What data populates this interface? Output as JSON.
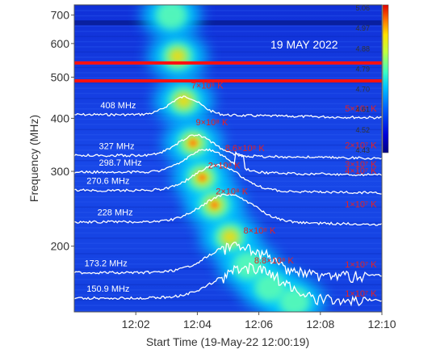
{
  "chart_data": {
    "type": "heatmap",
    "title": "19 MAY 2022",
    "xlabel": "Start Time (19-May-22 12:00:19)",
    "ylabel": "Frequency (MHz)",
    "x_axis": {
      "unit": "minutes after 12:00:19",
      "range": [
        0,
        10
      ],
      "ticks": [
        {
          "value": 2,
          "label": "12:02"
        },
        {
          "value": 4,
          "label": "12:04"
        },
        {
          "value": 6,
          "label": "12:06"
        },
        {
          "value": 8,
          "label": "12:08"
        },
        {
          "value": 10,
          "label": "12:10"
        }
      ]
    },
    "y_axis": {
      "scale": "log",
      "unit": "MHz",
      "range": [
        140,
        740
      ],
      "ticks": [
        200,
        300,
        400,
        500,
        600,
        700
      ]
    },
    "colorbar": {
      "range": [
        4.43,
        5.06
      ],
      "ticks": [
        "5.06",
        "4.97",
        "4.88",
        "4.79",
        "4.70",
        "4.61",
        "4.52",
        "4.43"
      ]
    },
    "burst": {
      "description_values": "drifting intensity ridge, frequency (MHz) vs time (min)",
      "ridge": [
        {
          "t": 3.0,
          "f": 700
        },
        {
          "t": 3.2,
          "f": 560
        },
        {
          "t": 3.4,
          "f": 440
        },
        {
          "t": 3.7,
          "f": 350
        },
        {
          "t": 4.0,
          "f": 290
        },
        {
          "t": 4.4,
          "f": 250
        },
        {
          "t": 4.9,
          "f": 210
        },
        {
          "t": 5.5,
          "f": 180
        },
        {
          "t": 6.2,
          "f": 160
        },
        {
          "t": 7.0,
          "f": 148
        }
      ]
    },
    "interference_bands_mhz": [
      540,
      490
    ],
    "series": [
      {
        "name": "408 MHz",
        "freq": 408,
        "temp_labels": [
          "7×10⁸ K",
          "5×10⁷ K"
        ]
      },
      {
        "name": "327 MHz",
        "freq": 327,
        "temp_labels": [
          "9×10⁸ K",
          "2×10⁷ K"
        ]
      },
      {
        "name": "298.7 MHz",
        "freq": 298.7,
        "temp_labels": [
          "8.6×10⁸ K",
          "3×10⁷ K"
        ]
      },
      {
        "name": "270.6 MHz",
        "freq": 270.6,
        "temp_labels": [
          "2×10⁸ K",
          "4×10⁷ K"
        ]
      },
      {
        "name": "228 MHz",
        "freq": 228,
        "temp_labels": [
          "2×10⁸ K",
          "1×10⁷ K"
        ]
      },
      {
        "name": "173.2 MHz",
        "freq": 173.2,
        "temp_labels": [
          "8×10⁸ K",
          "1×10⁷ K"
        ]
      },
      {
        "name": "150.9 MHz",
        "freq": 150.9,
        "temp_labels": [
          "8.8×10⁸ K",
          "1×10⁷ K"
        ]
      }
    ],
    "temperature_annotations": [
      {
        "text": "7×10⁸ K",
        "t": 3.8,
        "f": 470
      },
      {
        "text": "9×10⁸ K",
        "t": 3.95,
        "f": 385
      },
      {
        "text": "8.6×10⁸ K",
        "t": 4.9,
        "f": 335
      },
      {
        "text": "2×10⁸ K",
        "t": 4.35,
        "f": 305
      },
      {
        "text": "2×10⁸ K",
        "t": 4.6,
        "f": 265
      },
      {
        "text": "8×10⁸ K",
        "t": 5.5,
        "f": 214
      },
      {
        "text": "8.8×10⁸ K",
        "t": 5.85,
        "f": 182
      },
      {
        "text": "5×10⁷ K",
        "t": 8.8,
        "f": 415
      },
      {
        "text": "2×10⁷ K",
        "t": 8.8,
        "f": 340
      },
      {
        "text": "3×10⁷ K",
        "t": 8.8,
        "f": 307
      },
      {
        "text": "4×10⁷ K",
        "t": 8.8,
        "f": 296
      },
      {
        "text": "1×10⁷ K",
        "t": 8.8,
        "f": 247
      },
      {
        "text": "1×10⁷ K",
        "t": 8.8,
        "f": 178
      },
      {
        "text": "1×10⁷ K",
        "t": 8.8,
        "f": 152
      }
    ],
    "grid": false,
    "legend": "none"
  }
}
